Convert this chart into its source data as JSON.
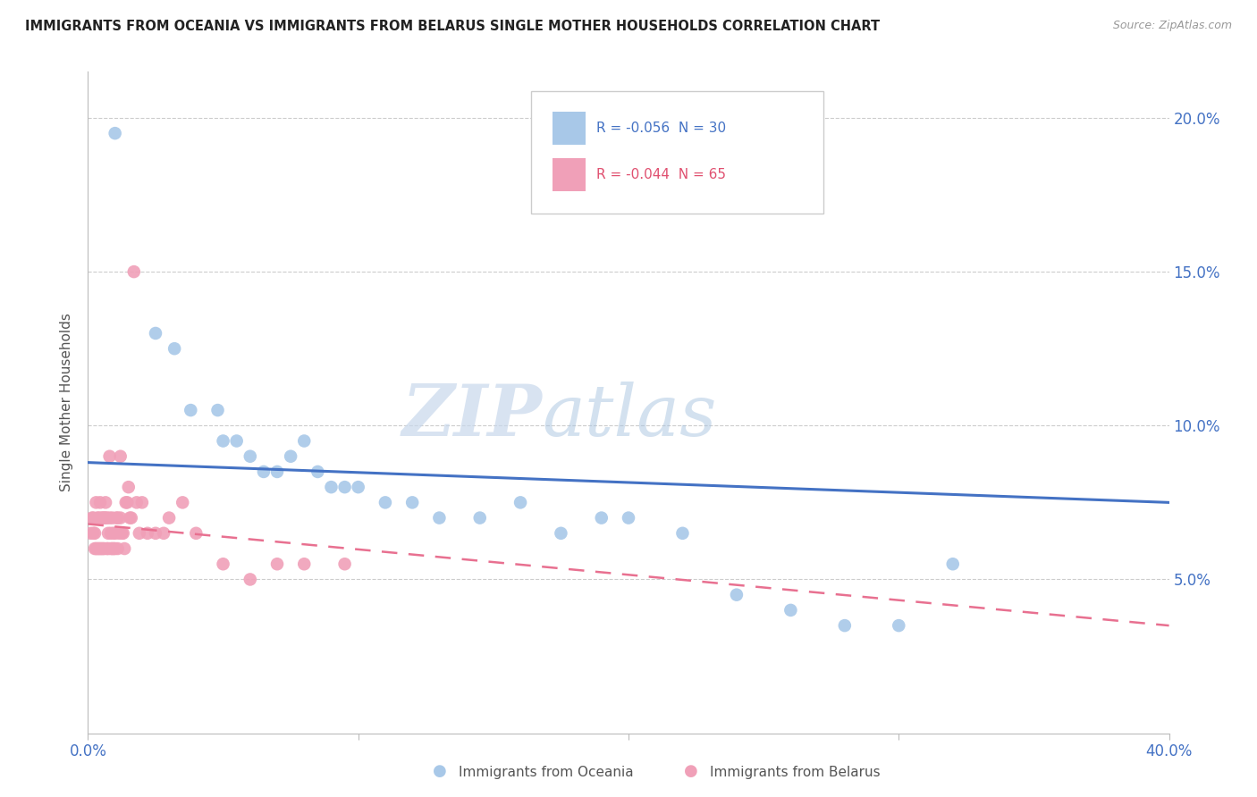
{
  "title": "IMMIGRANTS FROM OCEANIA VS IMMIGRANTS FROM BELARUS SINGLE MOTHER HOUSEHOLDS CORRELATION CHART",
  "source": "Source: ZipAtlas.com",
  "ylabel": "Single Mother Households",
  "yticks": [
    "5.0%",
    "10.0%",
    "15.0%",
    "20.0%"
  ],
  "ytick_vals": [
    5.0,
    10.0,
    15.0,
    20.0
  ],
  "xlim": [
    0.0,
    40.0
  ],
  "ylim": [
    0.0,
    21.5
  ],
  "legend_oceania": "R = -0.056  N = 30",
  "legend_belarus": "R = -0.044  N = 65",
  "color_oceania": "#A8C8E8",
  "color_belarus": "#F0A0B8",
  "line_color_oceania": "#4472C4",
  "line_color_belarus": "#E87090",
  "watermark_zip": "ZIP",
  "watermark_atlas": "atlas",
  "oceania_x": [
    1.0,
    2.5,
    3.2,
    3.8,
    4.8,
    5.0,
    5.5,
    6.0,
    6.5,
    7.0,
    7.5,
    8.0,
    8.5,
    9.0,
    9.5,
    10.0,
    11.0,
    12.0,
    13.0,
    14.5,
    16.0,
    17.5,
    19.0,
    20.0,
    22.0,
    24.0,
    26.0,
    28.0,
    30.0,
    32.0
  ],
  "oceania_y": [
    19.5,
    13.0,
    12.5,
    10.5,
    10.5,
    9.5,
    9.5,
    9.0,
    8.5,
    8.5,
    9.0,
    9.5,
    8.5,
    8.0,
    8.0,
    8.0,
    7.5,
    7.5,
    7.0,
    7.0,
    7.5,
    6.5,
    7.0,
    7.0,
    6.5,
    4.5,
    4.0,
    3.5,
    3.5,
    5.5
  ],
  "belarus_x": [
    0.1,
    0.15,
    0.2,
    0.25,
    0.3,
    0.35,
    0.4,
    0.45,
    0.5,
    0.55,
    0.6,
    0.65,
    0.7,
    0.75,
    0.8,
    0.85,
    0.9,
    0.95,
    1.0,
    1.1,
    1.2,
    1.3,
    1.4,
    1.5,
    1.6,
    1.7,
    1.8,
    1.9,
    2.0,
    2.2,
    2.5,
    2.8,
    3.0,
    3.5,
    4.0,
    5.0,
    6.0,
    7.0,
    8.0,
    9.5,
    1.2,
    0.5,
    0.6,
    0.7,
    0.3,
    0.4,
    0.8,
    0.9,
    1.0,
    1.1,
    0.2,
    0.25,
    0.35,
    0.45,
    0.55,
    0.65,
    0.75,
    0.85,
    0.95,
    1.05,
    1.15,
    1.25,
    1.35,
    1.45,
    1.55
  ],
  "belarus_y": [
    6.5,
    7.0,
    7.0,
    6.5,
    7.5,
    7.0,
    7.0,
    7.5,
    7.0,
    7.0,
    7.0,
    7.5,
    7.0,
    6.5,
    7.0,
    6.5,
    7.0,
    6.5,
    6.5,
    7.0,
    7.0,
    6.5,
    7.5,
    8.0,
    7.0,
    15.0,
    7.5,
    6.5,
    7.5,
    6.5,
    6.5,
    6.5,
    7.0,
    7.5,
    6.5,
    5.5,
    5.0,
    5.5,
    5.5,
    5.5,
    9.0,
    6.0,
    6.0,
    6.0,
    6.0,
    6.0,
    9.0,
    6.0,
    6.0,
    6.0,
    6.5,
    6.0,
    6.0,
    6.0,
    6.0,
    7.0,
    6.0,
    6.0,
    6.0,
    7.0,
    6.5,
    6.5,
    6.0,
    7.5,
    7.0
  ],
  "trend_oceania_x0": 0.0,
  "trend_oceania_y0": 8.8,
  "trend_oceania_x1": 40.0,
  "trend_oceania_y1": 7.5,
  "trend_belarus_x0": 0.0,
  "trend_belarus_y0": 6.8,
  "trend_belarus_x1": 40.0,
  "trend_belarus_y1": 3.5
}
